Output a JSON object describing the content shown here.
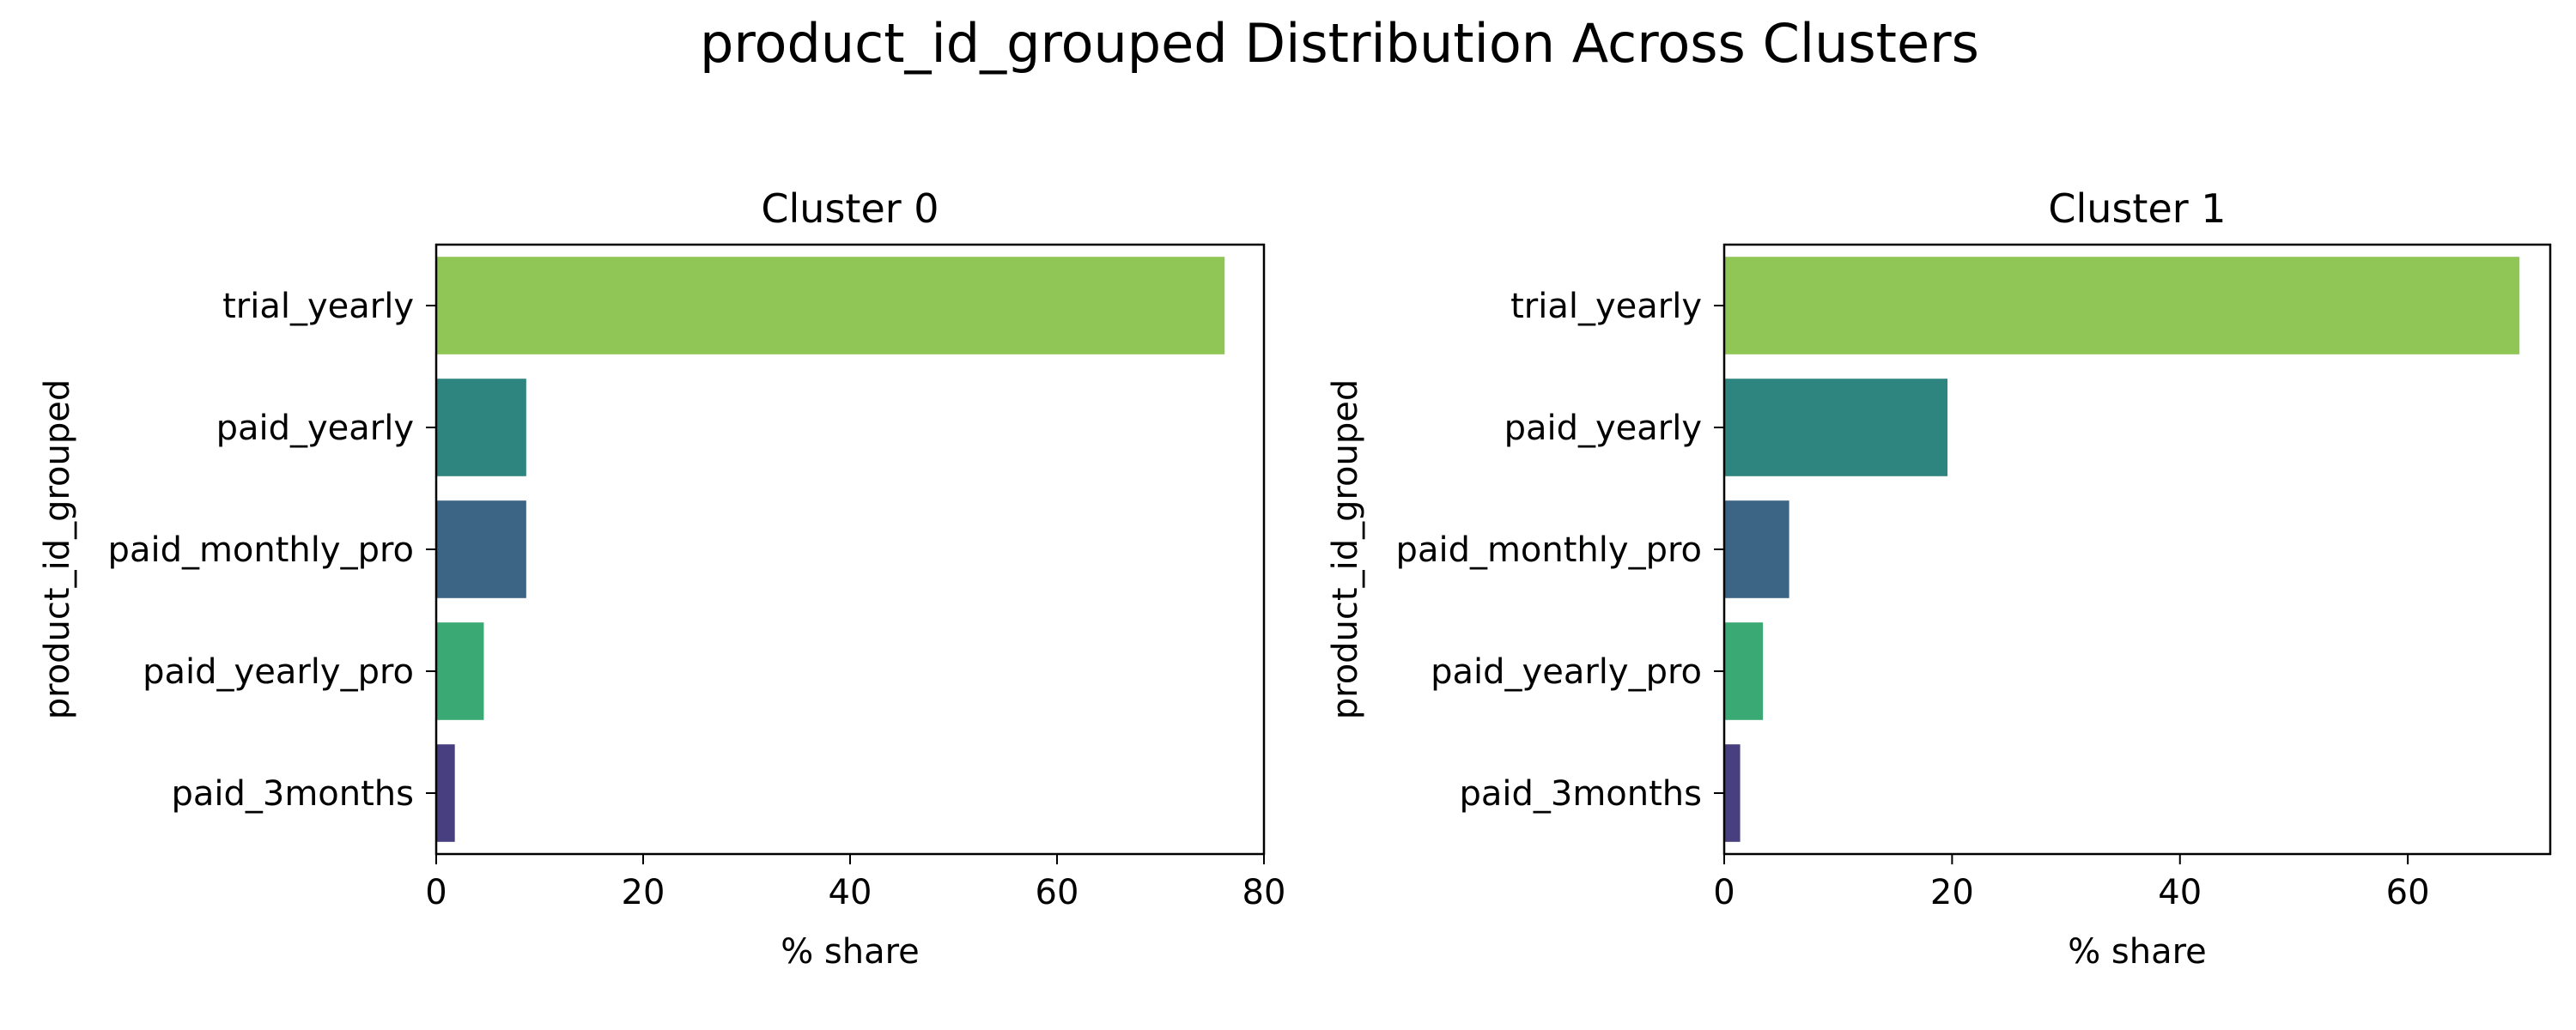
{
  "figure_title": "product_id_grouped Distribution Across Clusters",
  "chart_data": [
    {
      "type": "bar",
      "orientation": "horizontal",
      "title": "Cluster 0",
      "xlabel": "% share",
      "ylabel": "product_id_grouped",
      "categories": [
        "trial_yearly",
        "paid_yearly",
        "paid_monthly_pro",
        "paid_yearly_pro",
        "paid_3months"
      ],
      "values": [
        76.2,
        8.7,
        8.7,
        4.6,
        1.8
      ],
      "colors": [
        "#8fc655",
        "#2e8580",
        "#3c6485",
        "#3aa973",
        "#473f7f"
      ],
      "xlim": [
        0,
        80
      ],
      "xticks": [
        0,
        20,
        40,
        60,
        80
      ],
      "grid": false
    },
    {
      "type": "bar",
      "orientation": "horizontal",
      "title": "Cluster 1",
      "xlabel": "% share",
      "ylabel": "product_id_grouped",
      "categories": [
        "trial_yearly",
        "paid_yearly",
        "paid_monthly_pro",
        "paid_yearly_pro",
        "paid_3months"
      ],
      "values": [
        69.8,
        19.6,
        5.7,
        3.4,
        1.4
      ],
      "colors": [
        "#8fc655",
        "#2e8580",
        "#3c6485",
        "#3aa973",
        "#473f7f"
      ],
      "xlim": [
        0,
        72.5
      ],
      "xticks": [
        0,
        20,
        40,
        60
      ],
      "grid": false
    }
  ]
}
